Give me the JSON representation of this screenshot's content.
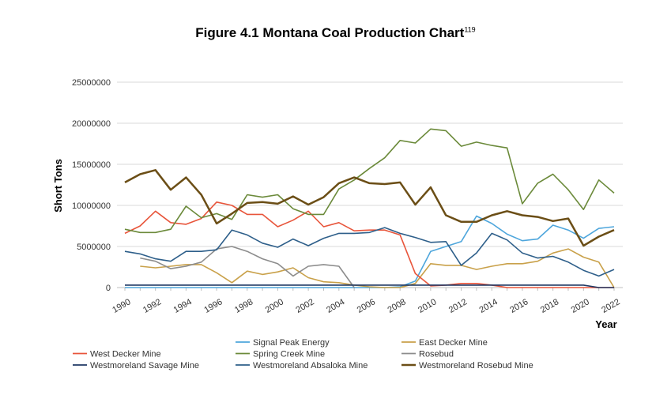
{
  "chart_data": {
    "type": "line",
    "title": "Figure 4.1 Montana Coal Production Chart",
    "title_superscript": "119",
    "xlabel": "Year",
    "ylabel": "Short Tons",
    "ylim": [
      0,
      25000000
    ],
    "yticks": [
      "0",
      "5000000",
      "10000000",
      "15000000",
      "20000000",
      "25000000"
    ],
    "xticks": [
      "1990",
      "1992",
      "1994",
      "1996",
      "1998",
      "2000",
      "2002",
      "2004",
      "2006",
      "2008",
      "2010",
      "2012",
      "2014",
      "2016",
      "2018",
      "2020",
      "2022"
    ],
    "grid": "horizontal",
    "legend": "bottom",
    "x": [
      1990,
      1991,
      1992,
      1993,
      1994,
      1995,
      1996,
      1997,
      1998,
      1999,
      2000,
      2001,
      2002,
      2003,
      2004,
      2005,
      2006,
      2007,
      2008,
      2009,
      2010,
      2011,
      2012,
      2013,
      2014,
      2015,
      2016,
      2017,
      2018,
      2019,
      2020,
      2021,
      2022
    ],
    "series": [
      {
        "name": "Signal Peak Energy",
        "color": "#4ea6dc",
        "values": [
          0,
          0,
          0,
          0,
          0,
          0,
          0,
          0,
          0,
          0,
          0,
          0,
          0,
          0,
          0,
          0,
          0,
          0,
          100000,
          800000,
          4400000,
          5000000,
          5600000,
          8700000,
          7800000,
          6500000,
          5700000,
          5900000,
          7600000,
          7000000,
          6000000,
          7200000,
          7400000
        ]
      },
      {
        "name": "East Decker Mine",
        "color": "#c9a14a",
        "values": [
          null,
          2600000,
          2400000,
          2600000,
          2800000,
          2800000,
          1800000,
          600000,
          2000000,
          1600000,
          1900000,
          2400000,
          1200000,
          700000,
          600000,
          300000,
          100000,
          0,
          0,
          500000,
          2900000,
          2700000,
          2700000,
          2200000,
          2600000,
          2900000,
          2900000,
          3200000,
          4200000,
          4700000,
          3700000,
          3100000,
          0
        ]
      },
      {
        "name": "West Decker Mine",
        "color": "#e8553b",
        "values": [
          6600000,
          7500000,
          9300000,
          7900000,
          7700000,
          8400000,
          10400000,
          10000000,
          8900000,
          8900000,
          7400000,
          8200000,
          9300000,
          7400000,
          7900000,
          6900000,
          7000000,
          7000000,
          6400000,
          1700000,
          200000,
          300000,
          500000,
          500000,
          300000,
          0,
          0,
          0,
          0,
          0,
          0,
          0,
          0
        ]
      },
      {
        "name": "Spring Creek Mine",
        "color": "#6b8a3a",
        "values": [
          7100000,
          6700000,
          6700000,
          7100000,
          9900000,
          8500000,
          9000000,
          8300000,
          11300000,
          11000000,
          11300000,
          9600000,
          8900000,
          8900000,
          12000000,
          13100000,
          14500000,
          15800000,
          17900000,
          17600000,
          19300000,
          19100000,
          17200000,
          17700000,
          17300000,
          17000000,
          10200000,
          12700000,
          13800000,
          11900000,
          9500000,
          13100000,
          11500000
        ]
      },
      {
        "name": "Rosebud",
        "color": "#8c8c8c",
        "values": [
          null,
          3600000,
          3200000,
          2300000,
          2600000,
          3100000,
          4700000,
          5000000,
          4400000,
          3500000,
          2900000,
          1400000,
          2600000,
          2800000,
          2600000,
          0,
          null,
          null,
          null,
          null,
          null,
          null,
          null,
          null,
          null,
          null,
          null,
          null,
          null,
          null,
          null,
          null,
          null
        ]
      },
      {
        "name": "Westmoreland Savage Mine",
        "color": "#1f3864",
        "values": [
          300000,
          300000,
          300000,
          300000,
          300000,
          300000,
          300000,
          300000,
          300000,
          300000,
          300000,
          300000,
          300000,
          300000,
          300000,
          300000,
          300000,
          300000,
          300000,
          300000,
          300000,
          300000,
          300000,
          300000,
          300000,
          300000,
          300000,
          300000,
          300000,
          300000,
          300000,
          0,
          0
        ]
      },
      {
        "name": "Westmoreland Absaloka Mine",
        "color": "#2e5f8a",
        "values": [
          4400000,
          4100000,
          3500000,
          3200000,
          4400000,
          4400000,
          4600000,
          7000000,
          6400000,
          5400000,
          4900000,
          5900000,
          5100000,
          6000000,
          6600000,
          6600000,
          6700000,
          7300000,
          6600000,
          6100000,
          5500000,
          5600000,
          2700000,
          4200000,
          6600000,
          5800000,
          4200000,
          3600000,
          3800000,
          3100000,
          2100000,
          1400000,
          2200000
        ]
      },
      {
        "name": "Westmoreland Rosebud Mine",
        "color": "#6b4e16",
        "values": [
          12800000,
          13800000,
          14300000,
          11900000,
          13400000,
          11300000,
          7800000,
          9000000,
          10300000,
          10400000,
          10200000,
          11100000,
          10100000,
          11000000,
          12700000,
          13400000,
          12700000,
          12600000,
          12800000,
          10100000,
          12200000,
          8800000,
          8000000,
          8000000,
          8800000,
          9300000,
          8800000,
          8600000,
          8100000,
          8400000,
          5100000,
          6200000,
          7000000
        ]
      }
    ]
  }
}
